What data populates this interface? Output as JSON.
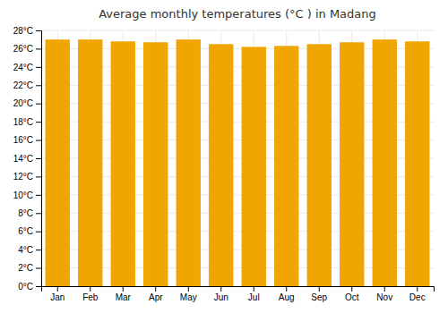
{
  "chart_data": {
    "type": "bar",
    "title": "Average monthly temperatures (°C ) in Madang",
    "categories": [
      "Jan",
      "Feb",
      "Mar",
      "Apr",
      "May",
      "Jun",
      "Jul",
      "Aug",
      "Sep",
      "Oct",
      "Nov",
      "Dec"
    ],
    "values": [
      27.0,
      27.0,
      26.8,
      26.7,
      27.0,
      26.5,
      26.2,
      26.3,
      26.5,
      26.7,
      27.0,
      26.8
    ],
    "color": "#F0A500",
    "ylim": [
      0,
      28
    ],
    "yticks": [
      {
        "value": 0,
        "label": "0°C"
      },
      {
        "value": 2,
        "label": "2°C"
      },
      {
        "value": 4,
        "label": "4°C"
      },
      {
        "value": 6,
        "label": "6°C"
      },
      {
        "value": 8,
        "label": "8°C"
      },
      {
        "value": 10,
        "label": "10°C"
      },
      {
        "value": 12,
        "label": "12°C"
      },
      {
        "value": 14,
        "label": "14°C"
      },
      {
        "value": 16,
        "label": "16°C"
      },
      {
        "value": 18,
        "label": "18°C"
      },
      {
        "value": 20,
        "label": "20°C"
      },
      {
        "value": 22,
        "label": "22°C"
      },
      {
        "value": 24,
        "label": "24°C"
      },
      {
        "value": 26,
        "label": "26°C"
      },
      {
        "value": 28,
        "label": "28°C"
      }
    ],
    "grid": true
  }
}
